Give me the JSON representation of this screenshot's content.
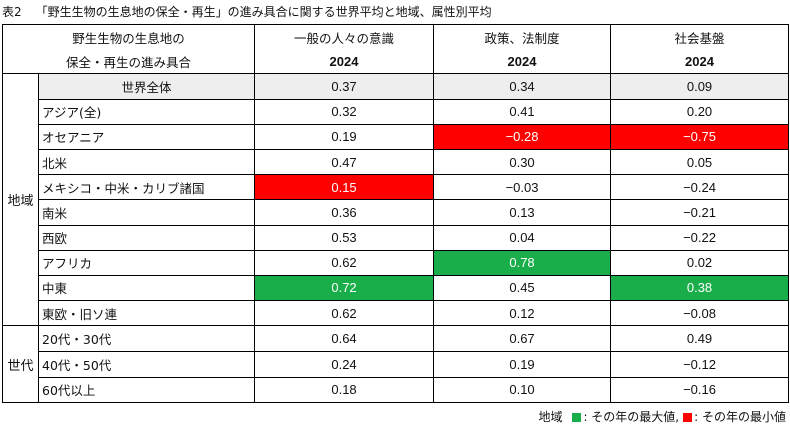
{
  "caption": {
    "number": "表2",
    "title": "「野生生物の生息地の保全・再生」の進み具合に関する世界平均と地域、属性別平均"
  },
  "header": {
    "label_line1": "野生生物の生息地の",
    "label_line2": "保全・再生の進み具合",
    "columns": [
      "一般の人々の意識",
      "政策、法制度",
      "社会基盤"
    ],
    "year": "2024"
  },
  "world": {
    "label": "世界全体",
    "values": [
      "0.37",
      "0.34",
      "0.09"
    ]
  },
  "region": {
    "group_label": "地域",
    "rows": [
      {
        "label": "アジア(全)",
        "values": [
          "0.32",
          "0.41",
          "0.20"
        ]
      },
      {
        "label": "オセアニア",
        "values": [
          "0.19",
          "−0.28",
          "−0.75"
        ]
      },
      {
        "label": "北米",
        "values": [
          "0.47",
          "0.30",
          "0.05"
        ]
      },
      {
        "label": "メキシコ・中米・カリブ諸国",
        "values": [
          "0.15",
          "−0.03",
          "−0.24"
        ]
      },
      {
        "label": "南米",
        "values": [
          "0.36",
          "0.13",
          "−0.21"
        ]
      },
      {
        "label": "西欧",
        "values": [
          "0.53",
          "0.04",
          "−0.22"
        ]
      },
      {
        "label": "アフリカ",
        "values": [
          "0.62",
          "0.78",
          "0.02"
        ]
      },
      {
        "label": "中東",
        "values": [
          "0.72",
          "0.45",
          "0.38"
        ]
      },
      {
        "label": "東欧・旧ソ連",
        "values": [
          "0.62",
          "0.12",
          "−0.08"
        ]
      }
    ]
  },
  "generation": {
    "group_label": "世代",
    "rows": [
      {
        "label": "20代・30代",
        "values": [
          "0.64",
          "0.67",
          "0.49"
        ]
      },
      {
        "label": "40代・50代",
        "values": [
          "0.24",
          "0.19",
          "−0.12"
        ]
      },
      {
        "label": "60代以上",
        "values": [
          "0.18",
          "0.10",
          "−0.16"
        ]
      }
    ]
  },
  "highlight_colors": {
    "max": "#1aae4a",
    "min": "#ff0000"
  },
  "legend": {
    "prefix": "地域",
    "max_text": ": その年の最大値,",
    "min_text": ": その年の最小値"
  }
}
